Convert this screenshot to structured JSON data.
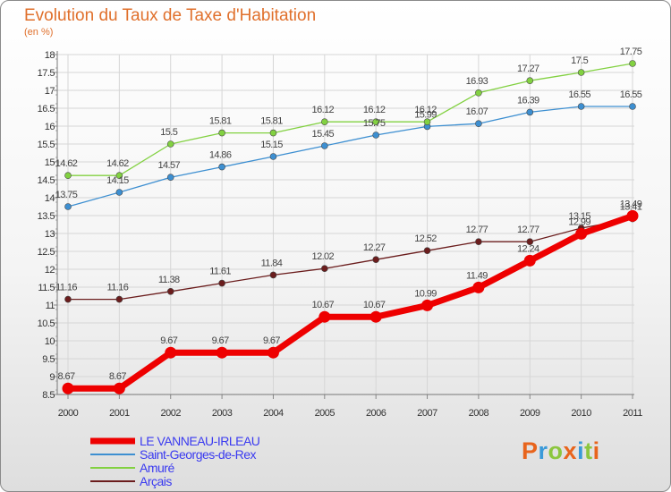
{
  "chart_data": {
    "type": "line",
    "title": "Evolution du Taux de Taxe d'Habitation",
    "unit_label": "(en %)",
    "x": [
      "2000",
      "2001",
      "2002",
      "2003",
      "2004",
      "2005",
      "2006",
      "2007",
      "2008",
      "2009",
      "2010",
      "2011"
    ],
    "yticks": [
      "8.5",
      "9",
      "9.5",
      "10",
      "10.5",
      "11",
      "11.5",
      "12",
      "12.5",
      "13",
      "13.5",
      "14",
      "14.5",
      "15",
      "15.5",
      "16",
      "16.5",
      "17",
      "17.5",
      "18"
    ],
    "ylim": [
      8.5,
      18
    ],
    "grid": true,
    "legend_position": "bottom-left",
    "series": [
      {
        "name": "LE VANNEAU-IRLEAU",
        "color": "#ee0000",
        "thick": true,
        "values": [
          8.67,
          8.67,
          9.67,
          9.67,
          9.67,
          10.67,
          10.67,
          10.99,
          11.49,
          12.24,
          12.99,
          13.49
        ],
        "labels": [
          "8.67",
          "8.67",
          "9.67",
          "9.67",
          "9.67",
          "10.67",
          "10.67",
          "10.99",
          "11.49",
          "12.24",
          "12.99",
          "13.49"
        ]
      },
      {
        "name": "Saint-Georges-de-Rex",
        "color": "#3d8fd1",
        "values": [
          13.75,
          14.15,
          14.57,
          14.86,
          15.15,
          15.45,
          15.75,
          15.99,
          16.07,
          16.39,
          16.55,
          16.55
        ],
        "labels": [
          "13.75",
          "14.15",
          "14.57",
          "14.86",
          "15.15",
          "15.45",
          "15.75",
          "15.99",
          "16.07",
          "16.39",
          "16.55",
          "16.55"
        ]
      },
      {
        "name": "Amuré",
        "color": "#82d141",
        "values": [
          14.62,
          14.62,
          15.5,
          15.81,
          15.81,
          16.12,
          16.12,
          16.12,
          16.93,
          17.27,
          17.5,
          17.75
        ],
        "labels": [
          "14.62",
          "14.62",
          "15.5",
          "15.81",
          "15.81",
          "16.12",
          "16.12",
          "16.12",
          "16.93",
          "17.27",
          "17.5",
          "17.75"
        ]
      },
      {
        "name": "Arçais",
        "color": "#6b1d1d",
        "values": [
          11.16,
          11.16,
          11.38,
          11.61,
          11.84,
          12.02,
          12.27,
          12.52,
          12.77,
          12.77,
          13.15,
          13.41
        ],
        "labels": [
          "11.16",
          "11.16",
          "11.38",
          "11.61",
          "11.84",
          "12.02",
          "12.27",
          "12.52",
          "12.77",
          "12.77",
          "13.15",
          "13.41"
        ]
      }
    ]
  },
  "logo": {
    "text": "Proxiti",
    "colors": [
      "#e8641c",
      "#3a9ad9",
      "#8cc63f",
      "#e8641c",
      "#3a9ad9",
      "#8cc63f",
      "#e8641c"
    ]
  }
}
